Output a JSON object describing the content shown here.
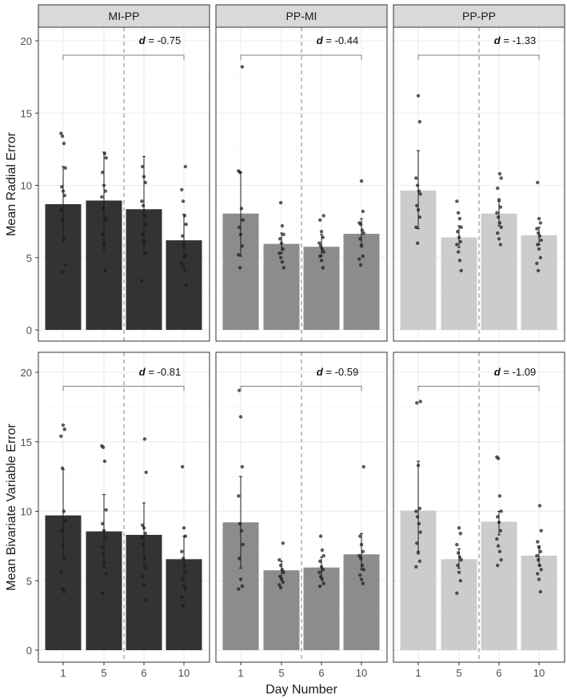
{
  "chart_data": {
    "type": "bar",
    "facet_columns": [
      "MI-PP",
      "PP-MI",
      "PP-PP"
    ],
    "xlabel": "Day Number",
    "categories": [
      "1",
      "5",
      "6",
      "10"
    ],
    "y_ticks": [
      "0",
      "5",
      "10",
      "15",
      "20"
    ],
    "ylim": [
      0,
      20.8
    ],
    "grid": true,
    "bar_colors": {
      "MI-PP": "#333333",
      "PP-MI": "#8c8c8c",
      "PP-PP": "#cccccc"
    },
    "rows": [
      {
        "ylabel": "Mean Radial Error",
        "panels": [
          {
            "group": "MI-PP",
            "values": [
              8.7,
              8.95,
              8.35,
              6.2
            ],
            "error_low": [
              6.1,
              5.5,
              5.3,
              5.0
            ],
            "error_high": [
              11.3,
              12.3,
              12.0,
              8.0
            ],
            "points": [
              [
                13.6,
                13.4,
                12.9,
                11.2,
                9.9,
                9.6,
                9.3,
                8.3,
                7.6,
                6.3,
                4.5,
                4.0
              ],
              [
                12.2,
                11.9,
                10.9,
                10.0,
                9.6,
                9.2,
                8.4,
                7.8,
                7.6,
                6.6,
                5.9,
                4.1
              ],
              [
                11.3,
                10.6,
                10.2,
                8.9,
                8.6,
                7.9,
                7.3,
                6.6,
                6.1,
                5.3,
                3.4
              ],
              [
                11.3,
                9.7,
                8.9,
                7.9,
                7.3,
                6.5,
                5.9,
                5.1,
                4.6,
                4.4,
                4.1,
                3.1
              ]
            ],
            "effect_label": "d = -0.75"
          },
          {
            "group": "PP-MI",
            "values": [
              8.05,
              5.95,
              5.75,
              6.65
            ],
            "error_low": [
              5.1,
              5.3,
              5.1,
              5.9
            ],
            "error_high": [
              10.9,
              6.7,
              6.6,
              7.7
            ],
            "points": [
              [
                18.2,
                11.0,
                10.9,
                8.4,
                7.6,
                7.1,
                6.6,
                5.8,
                5.2,
                4.3
              ],
              [
                8.8,
                7.2,
                6.6,
                6.3,
                6.0,
                5.6,
                5.3,
                5.0,
                4.7,
                4.3
              ],
              [
                7.9,
                7.6,
                6.8,
                6.4,
                6.0,
                5.8,
                5.6,
                5.4,
                5.1,
                4.8,
                4.3
              ],
              [
                10.3,
                8.2,
                7.4,
                7.3,
                6.9,
                6.7,
                6.3,
                5.8,
                5.1,
                4.9,
                4.5
              ]
            ],
            "effect_label": "d = -0.44"
          },
          {
            "group": "PP-PP",
            "values": [
              9.65,
              6.4,
              8.05,
              6.55
            ],
            "error_low": [
              7.0,
              5.7,
              7.2,
              5.9
            ],
            "error_high": [
              12.4,
              7.2,
              8.9,
              7.1
            ],
            "points": [
              [
                16.2,
                14.4,
                10.5,
                10.0,
                9.6,
                9.4,
                8.6,
                8.3,
                7.8,
                7.1,
                6.0
              ],
              [
                8.9,
                8.1,
                7.7,
                7.1,
                6.8,
                6.4,
                6.1,
                5.9,
                5.4,
                4.8,
                4.1
              ],
              [
                10.8,
                10.5,
                9.8,
                9.0,
                8.5,
                8.1,
                7.8,
                7.4,
                7.1,
                6.7,
                6.3,
                5.9
              ],
              [
                10.2,
                7.7,
                7.4,
                7.0,
                6.7,
                6.5,
                6.2,
                5.9,
                5.6,
                5.0,
                4.6,
                4.1
              ]
            ],
            "effect_label": "d = -1.33"
          }
        ]
      },
      {
        "ylabel": "Mean Bivariate Variable Error",
        "panels": [
          {
            "group": "MI-PP",
            "values": [
              9.7,
              8.55,
              8.3,
              6.55
            ],
            "error_low": [
              6.5,
              6.0,
              6.1,
              5.0
            ],
            "error_high": [
              13.0,
              11.2,
              10.6,
              8.2
            ],
            "points": [
              [
                16.2,
                15.9,
                15.4,
                13.1,
                10.0,
                9.3,
                8.6,
                7.6,
                6.6,
                5.6,
                4.4,
                4.2
              ],
              [
                14.7,
                14.6,
                13.6,
                10.1,
                9.1,
                8.6,
                8.1,
                7.4,
                6.9,
                6.3,
                5.5,
                4.1
              ],
              [
                15.2,
                12.8,
                9.0,
                8.8,
                8.4,
                8.1,
                7.6,
                6.6,
                5.9,
                5.3,
                4.7,
                3.6
              ],
              [
                13.2,
                8.8,
                8.2,
                7.1,
                6.6,
                6.1,
                5.6,
                5.1,
                4.6,
                4.4,
                3.8,
                3.2
              ]
            ],
            "effect_label": "d = -0.81"
          },
          {
            "group": "PP-MI",
            "values": [
              9.2,
              5.75,
              5.95,
              6.9
            ],
            "error_low": [
              5.9,
              5.2,
              5.2,
              5.8
            ],
            "error_high": [
              12.5,
              6.4,
              6.7,
              8.4
            ],
            "points": [
              [
                18.7,
                16.8,
                13.2,
                11.1,
                9.1,
                8.6,
                7.6,
                6.6,
                5.1,
                4.6,
                4.4
              ],
              [
                7.7,
                6.5,
                6.1,
                5.8,
                5.6,
                5.3,
                5.1,
                4.9,
                4.7,
                4.5
              ],
              [
                8.2,
                7.2,
                6.8,
                6.4,
                6.0,
                5.8,
                5.6,
                5.3,
                5.1,
                4.8,
                4.6
              ],
              [
                13.2,
                8.2,
                7.6,
                7.1,
                6.8,
                6.6,
                6.1,
                5.8,
                5.4,
                5.1,
                4.8
              ]
            ],
            "effect_label": "d = -0.59"
          },
          {
            "group": "PP-PP",
            "values": [
              10.05,
              6.55,
              9.25,
              6.8
            ],
            "error_low": [
              7.1,
              5.9,
              8.3,
              6.1
            ],
            "error_high": [
              13.6,
              7.3,
              10.0,
              7.5
            ],
            "points": [
              [
                17.9,
                17.8,
                13.3,
                10.2,
                10.0,
                9.6,
                9.1,
                8.5,
                7.7,
                7.0,
                6.4,
                6.0
              ],
              [
                8.8,
                8.4,
                7.6,
                7.0,
                6.7,
                6.5,
                6.1,
                5.6,
                5.0,
                4.1
              ],
              [
                13.9,
                13.8,
                11.1,
                10.0,
                9.6,
                9.2,
                8.6,
                8.0,
                7.5,
                7.1,
                6.5,
                6.1
              ],
              [
                10.4,
                8.6,
                7.8,
                7.4,
                7.1,
                6.8,
                6.5,
                6.1,
                5.8,
                5.5,
                5.1,
                4.2
              ]
            ],
            "effect_label": "d = -1.09"
          }
        ]
      }
    ]
  }
}
